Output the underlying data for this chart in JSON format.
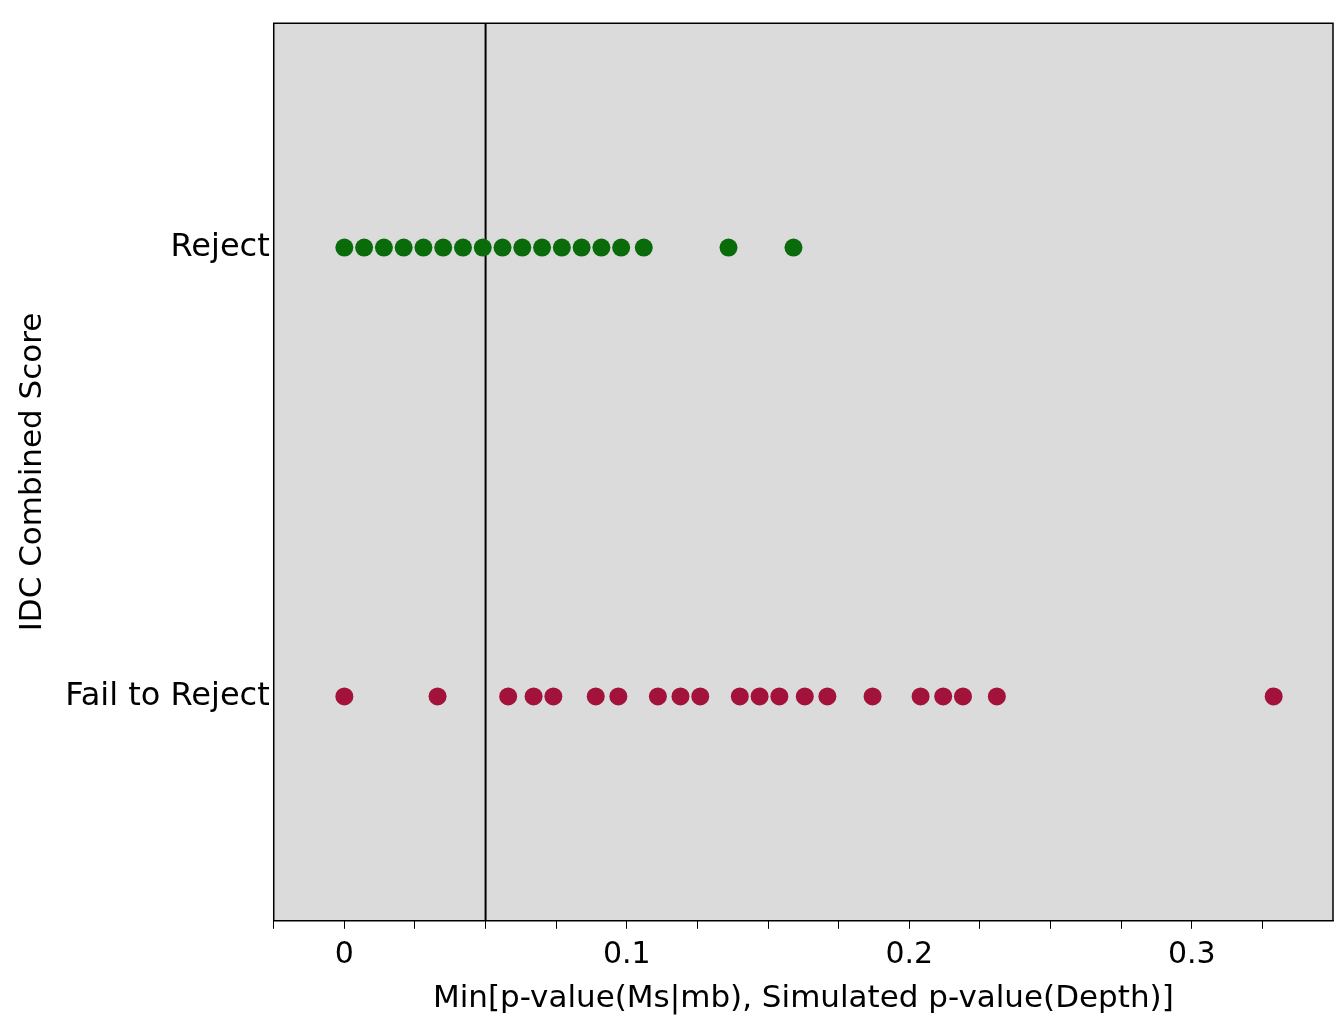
{
  "chart_data": {
    "type": "scatter",
    "orientation": "horizontal",
    "xlabel": "Min[p-value(Ms|mb), Simulated p-value(Depth)]",
    "ylabel": "IDC Combined Score",
    "categories": [
      "Reject",
      "Fail to Reject"
    ],
    "xlim": [
      -0.025,
      0.35
    ],
    "xticks": [
      {
        "value": -0.025,
        "label": null
      },
      0,
      {
        "value": 0.025,
        "label": null
      },
      {
        "value": 0.05,
        "label": null
      },
      {
        "value": 0.075,
        "label": null
      },
      0.1,
      {
        "value": 0.125,
        "label": null
      },
      {
        "value": 0.15,
        "label": null
      },
      {
        "value": 0.175,
        "label": null
      },
      0.2,
      {
        "value": 0.225,
        "label": null
      },
      {
        "value": 0.25,
        "label": null
      },
      {
        "value": 0.275,
        "label": null
      },
      0.3,
      {
        "value": 0.325,
        "label": null
      }
    ],
    "grid": false,
    "legend": false,
    "marker": "circle",
    "ref_lines": [
      {
        "axis": "x",
        "value": 0.05,
        "color": "#000000"
      }
    ],
    "series": [
      {
        "color": "#0a6b0a",
        "x": [
          "Reject",
          "Reject",
          "Reject",
          "Reject",
          "Reject",
          "Reject",
          "Reject",
          "Reject",
          "Reject",
          "Reject",
          "Reject",
          "Reject",
          "Reject",
          "Reject",
          "Reject",
          "Reject",
          "Reject",
          "Reject"
        ],
        "values": [
          0,
          0.007,
          0.014,
          0.021,
          0.028,
          0.035,
          0.042,
          0.049,
          0.056,
          0.063,
          0.07,
          0.077,
          0.084,
          0.091,
          0.098,
          0.106,
          0.136,
          0.159
        ]
      },
      {
        "color": "#a3123a",
        "x": [
          "Fail to Reject",
          "Fail to Reject",
          "Fail to Reject",
          "Fail to Reject",
          "Fail to Reject",
          "Fail to Reject",
          "Fail to Reject",
          "Fail to Reject",
          "Fail to Reject",
          "Fail to Reject",
          "Fail to Reject",
          "Fail to Reject",
          "Fail to Reject",
          "Fail to Reject",
          "Fail to Reject",
          "Fail to Reject",
          "Fail to Reject",
          "Fail to Reject",
          "Fail to Reject",
          "Fail to Reject",
          "Fail to Reject"
        ],
        "values": [
          0,
          0.033,
          0.058,
          0.067,
          0.074,
          0.089,
          0.097,
          0.111,
          0.119,
          0.126,
          0.14,
          0.147,
          0.154,
          0.163,
          0.171,
          0.187,
          0.204,
          0.212,
          0.219,
          0.231,
          0.329
        ]
      }
    ]
  }
}
